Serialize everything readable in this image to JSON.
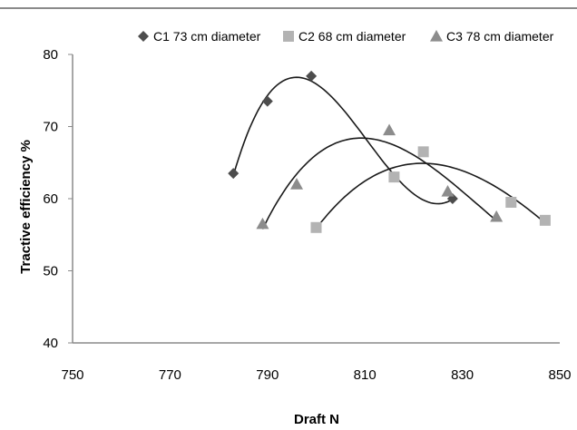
{
  "chart_data": {
    "type": "scatter",
    "xlabel": "Draft N",
    "ylabel": "Tractive efficiency %",
    "xlim": [
      750,
      850
    ],
    "ylim": [
      40,
      80
    ],
    "xticks": [
      750,
      770,
      790,
      810,
      830,
      850
    ],
    "yticks": [
      40,
      50,
      60,
      70,
      80
    ],
    "grid": false,
    "legend_position": "top",
    "trendline": "polynomial",
    "series": [
      {
        "name": "C1 73 cm diameter",
        "marker": "diamond",
        "color": "#4d4d4d",
        "points": [
          [
            783,
            63.5
          ],
          [
            790,
            73.5
          ],
          [
            799,
            77
          ],
          [
            816,
            63
          ],
          [
            828,
            60
          ]
        ]
      },
      {
        "name": "C2 68 cm diameter",
        "marker": "square",
        "color": "#b3b3b3",
        "points": [
          [
            800,
            56
          ],
          [
            816,
            63
          ],
          [
            822,
            66.5
          ],
          [
            840,
            59.5
          ],
          [
            847,
            57
          ]
        ]
      },
      {
        "name": "C3 78 cm diameter",
        "marker": "triangle",
        "color": "#8c8c8c",
        "points": [
          [
            789,
            56.5
          ],
          [
            796,
            62
          ],
          [
            815,
            69.5
          ],
          [
            827,
            61
          ],
          [
            837,
            57.5
          ]
        ]
      }
    ]
  }
}
